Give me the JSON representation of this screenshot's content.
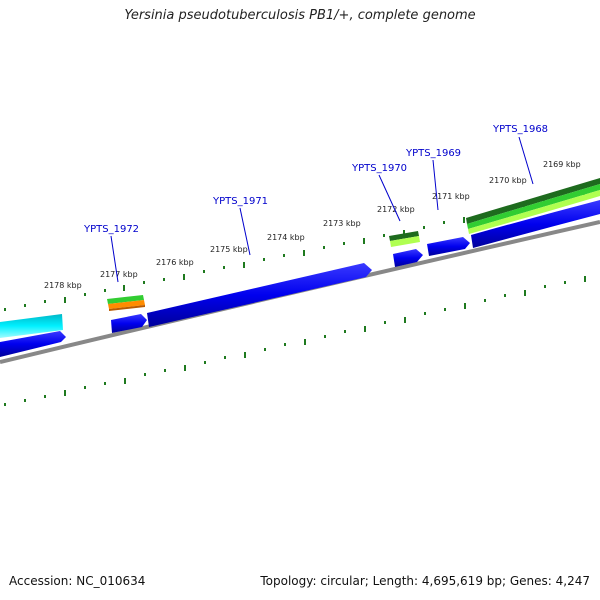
{
  "title": "Yersinia pseudotuberculosis PB1/+, complete genome",
  "footer": {
    "accession": "Accession: NC_010634",
    "summary": "Topology: circular; Length: 4,695,619 bp; Genes: 4,247"
  },
  "ruler_labels": [
    "2169 kbp",
    "2170 kbp",
    "2171 kbp",
    "2172 kbp",
    "2173 kbp",
    "2174 kbp",
    "2175 kbp",
    "2176 kbp",
    "2177 kbp",
    "2178 kbp"
  ],
  "gene_labels": [
    "YPTS_1968",
    "YPTS_1969",
    "YPTS_1970",
    "YPTS_1971",
    "YPTS_1972"
  ],
  "colors": {
    "gene": "#0000ee",
    "backbone": "#888888",
    "tick": "#006400",
    "label_link": "#0000cc",
    "cyan": "#00e5ee",
    "green": "#32cd32",
    "dark_green": "#1e6b1e",
    "light_green": "#b0ff50",
    "orange": "#ff8c00"
  }
}
